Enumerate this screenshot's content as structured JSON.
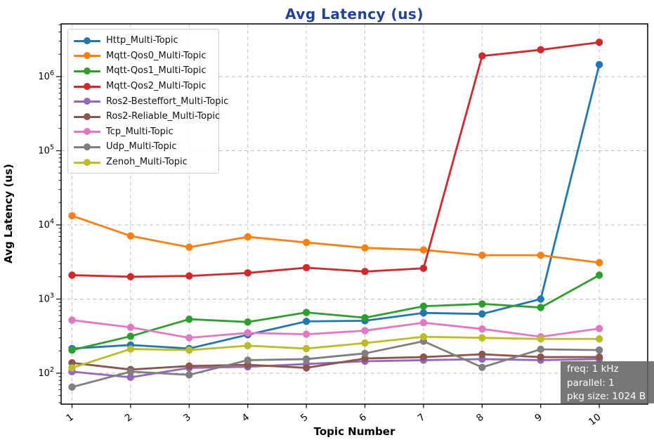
{
  "chart_data": {
    "type": "line",
    "title": "Avg Latency  (us)",
    "xlabel": "Topic Number",
    "ylabel": "Avg Latency (us)",
    "yscale": "log",
    "ylim": [
      38,
      5100000
    ],
    "grid": "dashed-both-axes",
    "legend_position": "upper left",
    "x": [
      1,
      2,
      3,
      4,
      5,
      6,
      7,
      8,
      9,
      10
    ],
    "x_ticks": [
      "1",
      "2",
      "3",
      "4",
      "5",
      "6",
      "7",
      "8",
      "9",
      "10"
    ],
    "y_ticks": [
      "10^2",
      "10^3",
      "10^4",
      "10^5",
      "10^6"
    ],
    "series": [
      {
        "name": "Http_Multi-Topic",
        "color": "#1f77b4",
        "values": [
          215,
          240,
          215,
          330,
          500,
          510,
          650,
          630,
          1000,
          1450000
        ]
      },
      {
        "name": "Mqtt-Qos0_Multi-Topic",
        "color": "#ff7f0e",
        "values": [
          13300,
          7100,
          5000,
          6900,
          5800,
          4900,
          4600,
          3900,
          3900,
          3100
        ]
      },
      {
        "name": "Mqtt-Qos1_Multi-Topic",
        "color": "#2ca02c",
        "values": [
          205,
          315,
          535,
          490,
          660,
          560,
          800,
          860,
          770,
          2100
        ]
      },
      {
        "name": "Mqtt-Qos2_Multi-Topic",
        "color": "#d62728",
        "values": [
          2100,
          2000,
          2050,
          2250,
          2650,
          2350,
          2600,
          1900000,
          2300000,
          2900000
        ]
      },
      {
        "name": "Ros2-Besteffort_Multi-Topic",
        "color": "#9467bd",
        "values": [
          105,
          88,
          118,
          122,
          133,
          145,
          150,
          155,
          150,
          155
        ]
      },
      {
        "name": "Ros2-Reliable_Multi-Topic",
        "color": "#8c564b",
        "values": [
          138,
          112,
          125,
          130,
          118,
          158,
          165,
          180,
          165,
          165
        ]
      },
      {
        "name": "Tcp_Multi-Topic",
        "color": "#e377c2",
        "values": [
          520,
          415,
          300,
          350,
          335,
          375,
          480,
          395,
          310,
          400
        ]
      },
      {
        "name": "Udp_Multi-Topic",
        "color": "#7f7f7f",
        "values": [
          65,
          105,
          95,
          150,
          155,
          185,
          270,
          120,
          210,
          205
        ]
      },
      {
        "name": "Zenoh_Multi-Topic",
        "color": "#bcbd22",
        "values": [
          118,
          212,
          205,
          235,
          215,
          255,
          310,
          300,
          290,
          290
        ]
      }
    ],
    "annotation": [
      "freq: 1 kHz",
      "parallel: 1",
      "pkg size: 1024 B"
    ]
  }
}
